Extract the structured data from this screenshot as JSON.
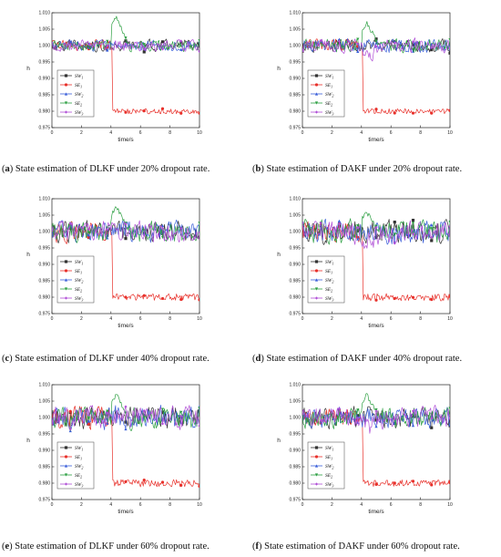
{
  "chart_data": [
    {
      "type": "line",
      "panel": "a",
      "caption_letter": "a",
      "caption_text": "State estimation of DLKF under 20% dropout rate.",
      "ylabel": "h",
      "xlabel": "time/s",
      "xlim": [
        0,
        10
      ],
      "ylim": [
        0.975,
        1.01
      ],
      "xticks": [
        "0",
        "2",
        "4",
        "6",
        "8",
        "10"
      ],
      "yticks": [
        "0.975",
        "0.980",
        "0.985",
        "0.990",
        "0.995",
        "1.000",
        "1.005",
        "1.010"
      ],
      "legend_position": "left-middle",
      "noise_scale": 1.0,
      "series": [
        {
          "name": "SW",
          "sub": "1",
          "color": "#333333",
          "marker": "square"
        },
        {
          "name": "SE",
          "sub": "1",
          "color": "#e8312b",
          "marker": "circle",
          "step_to": 0.98
        },
        {
          "name": "SW",
          "sub": "2",
          "color": "#3a5fd9",
          "marker": "triangle"
        },
        {
          "name": "SE",
          "sub": "2",
          "color": "#2ea043",
          "marker": "triangle-down",
          "spike": 1.009
        },
        {
          "name": "SW",
          "sub": "3",
          "color": "#b04fd6",
          "marker": "diamond"
        }
      ]
    },
    {
      "type": "line",
      "panel": "b",
      "caption_letter": "b",
      "caption_text": "State estimation of DAKF under 20% dropout rate.",
      "ylabel": "h",
      "xlabel": "time/s",
      "xlim": [
        0,
        10
      ],
      "ylim": [
        0.975,
        1.01
      ],
      "xticks": [
        "0",
        "2",
        "4",
        "6",
        "8",
        "10"
      ],
      "yticks": [
        "0.975",
        "0.980",
        "0.985",
        "0.990",
        "0.995",
        "1.000",
        "1.005",
        "1.010"
      ],
      "legend_position": "left-middle",
      "noise_scale": 1.2,
      "series": [
        {
          "name": "SW",
          "sub": "1",
          "color": "#333333",
          "marker": "square"
        },
        {
          "name": "SE",
          "sub": "1",
          "color": "#e8312b",
          "marker": "circle",
          "step_to": 0.98
        },
        {
          "name": "SW",
          "sub": "2",
          "color": "#3a5fd9",
          "marker": "triangle"
        },
        {
          "name": "SE",
          "sub": "2",
          "color": "#2ea043",
          "marker": "triangle-down",
          "spike": 1.007
        },
        {
          "name": "SW",
          "sub": "3",
          "color": "#b04fd6",
          "marker": "diamond"
        }
      ]
    },
    {
      "type": "line",
      "panel": "c",
      "caption_letter": "c",
      "caption_text": "State estimation of DLKF under 40% dropout rate.",
      "ylabel": "h",
      "xlabel": "time/s",
      "xlim": [
        0,
        10
      ],
      "ylim": [
        0.975,
        1.01
      ],
      "xticks": [
        "0",
        "2",
        "4",
        "6",
        "8",
        "10"
      ],
      "yticks": [
        "0.975",
        "0.980",
        "0.985",
        "0.990",
        "0.995",
        "1.000",
        "1.005",
        "1.010"
      ],
      "legend_position": "left-middle",
      "noise_scale": 1.8,
      "series": [
        {
          "name": "SW",
          "sub": "1",
          "color": "#333333",
          "marker": "square"
        },
        {
          "name": "SE",
          "sub": "1",
          "color": "#e8312b",
          "marker": "circle",
          "step_to": 0.98
        },
        {
          "name": "SW",
          "sub": "2",
          "color": "#3a5fd9",
          "marker": "triangle"
        },
        {
          "name": "SE",
          "sub": "2",
          "color": "#2ea043",
          "marker": "triangle-down",
          "spike": 1.008
        },
        {
          "name": "SW",
          "sub": "3",
          "color": "#b04fd6",
          "marker": "diamond"
        }
      ]
    },
    {
      "type": "line",
      "panel": "d",
      "caption_letter": "d",
      "caption_text": "State estimation of DAKF under 40% dropout rate.",
      "ylabel": "h",
      "xlabel": "time/s",
      "xlim": [
        0,
        10
      ],
      "ylim": [
        0.975,
        1.01
      ],
      "xticks": [
        "0",
        "2",
        "4",
        "6",
        "8",
        "10"
      ],
      "yticks": [
        "0.975",
        "0.980",
        "0.985",
        "0.990",
        "0.995",
        "1.000",
        "1.005",
        "1.010"
      ],
      "legend_position": "left-middle",
      "noise_scale": 2.0,
      "series": [
        {
          "name": "SW",
          "sub": "1",
          "color": "#333333",
          "marker": "square"
        },
        {
          "name": "SE",
          "sub": "1",
          "color": "#e8312b",
          "marker": "circle",
          "step_to": 0.98
        },
        {
          "name": "SW",
          "sub": "2",
          "color": "#3a5fd9",
          "marker": "triangle"
        },
        {
          "name": "SE",
          "sub": "2",
          "color": "#2ea043",
          "marker": "triangle-down",
          "spike": 1.006
        },
        {
          "name": "SW",
          "sub": "3",
          "color": "#b04fd6",
          "marker": "diamond"
        }
      ]
    },
    {
      "type": "line",
      "panel": "e",
      "caption_letter": "e",
      "caption_text": "State estimation of DLKF under 60% dropout rate.",
      "ylabel": "h",
      "xlabel": "time/s",
      "xlim": [
        0,
        10
      ],
      "ylim": [
        0.975,
        1.01
      ],
      "xticks": [
        "0",
        "2",
        "4",
        "6",
        "8",
        "10"
      ],
      "yticks": [
        "0.975",
        "0.980",
        "0.985",
        "0.990",
        "0.995",
        "1.000",
        "1.005",
        "1.010"
      ],
      "legend_position": "left-middle",
      "noise_scale": 2.0,
      "series": [
        {
          "name": "SW",
          "sub": "1",
          "color": "#333333",
          "marker": "square"
        },
        {
          "name": "SE",
          "sub": "1",
          "color": "#e8312b",
          "marker": "circle",
          "step_to": 0.98
        },
        {
          "name": "SW",
          "sub": "2",
          "color": "#3a5fd9",
          "marker": "triangle"
        },
        {
          "name": "SE",
          "sub": "2",
          "color": "#2ea043",
          "marker": "triangle-down",
          "spike": 1.007
        },
        {
          "name": "SW",
          "sub": "3",
          "color": "#b04fd6",
          "marker": "diamond"
        }
      ]
    },
    {
      "type": "line",
      "panel": "f",
      "caption_letter": "f",
      "caption_text": "State estimation of DAKF under 60% dropout rate.",
      "ylabel": "h",
      "xlabel": "time/s",
      "xlim": [
        0,
        10
      ],
      "ylim": [
        0.975,
        1.01
      ],
      "xticks": [
        "0",
        "2",
        "4",
        "6",
        "8",
        "10"
      ],
      "yticks": [
        "0.975",
        "0.980",
        "0.985",
        "0.990",
        "0.995",
        "1.000",
        "1.005",
        "1.010"
      ],
      "legend_position": "left-middle",
      "noise_scale": 1.8,
      "series": [
        {
          "name": "SW",
          "sub": "1",
          "color": "#333333",
          "marker": "square"
        },
        {
          "name": "SE",
          "sub": "1",
          "color": "#e8312b",
          "marker": "circle",
          "step_to": 0.98
        },
        {
          "name": "SW",
          "sub": "2",
          "color": "#3a5fd9",
          "marker": "triangle"
        },
        {
          "name": "SE",
          "sub": "2",
          "color": "#2ea043",
          "marker": "triangle-down",
          "spike": 1.007
        },
        {
          "name": "SW",
          "sub": "3",
          "color": "#b04fd6",
          "marker": "diamond"
        }
      ]
    }
  ]
}
